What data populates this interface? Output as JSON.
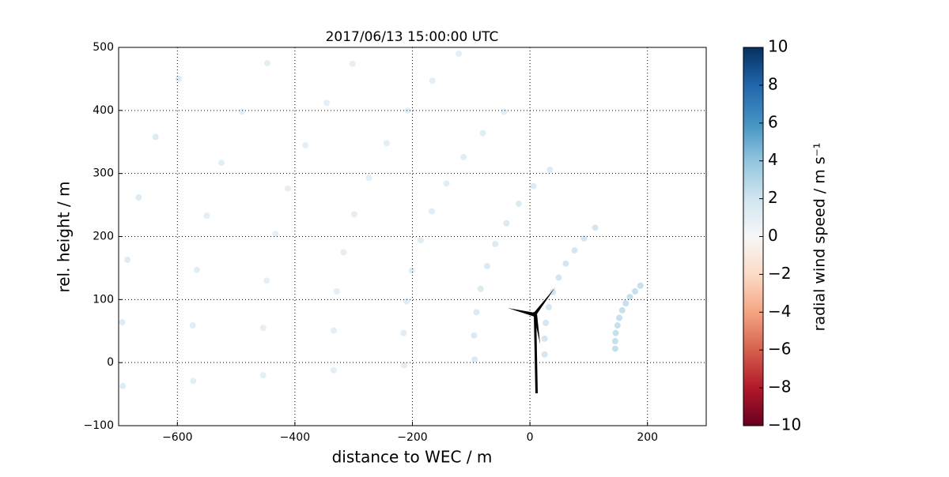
{
  "chart_data": {
    "type": "scatter",
    "title": "2017/06/13 15:00:00 UTC",
    "x_label": "distance to WEC / m",
    "y_label": "rel. height / m",
    "colorbar_label": "radial wind speed / m s⁻¹",
    "x": [
      145,
      25,
      -94,
      -214,
      -334,
      -454,
      -573,
      -693,
      145,
      25,
      -95,
      -215,
      -334,
      -454,
      -574,
      -694,
      146,
      27,
      -91,
      -210,
      -329,
      -448,
      -567,
      -685,
      149,
      32,
      -84,
      -201,
      -317,
      -433,
      -550,
      -666,
      152,
      39,
      -73,
      -186,
      -299,
      -412,
      -525,
      -637,
      157,
      49,
      -59,
      -167,
      -274,
      -382,
      -490,
      -598,
      163,
      61,
      -40,
      -142,
      -244,
      -346,
      -447,
      170,
      76,
      -19,
      -113,
      -208,
      -302,
      179,
      92,
      6,
      -80,
      -166,
      188,
      111,
      34,
      -44,
      -121
    ],
    "y": [
      22,
      13,
      5,
      -4,
      -12,
      -20,
      -29,
      -37,
      34,
      38,
      43,
      47,
      51,
      55,
      59,
      64,
      47,
      63,
      80,
      97,
      113,
      130,
      147,
      163,
      59,
      88,
      117,
      146,
      175,
      204,
      233,
      262,
      71,
      112,
      153,
      194,
      235,
      276,
      317,
      358,
      83,
      135,
      188,
      240,
      293,
      345,
      398,
      450,
      94,
      157,
      221,
      284,
      348,
      412,
      475,
      104,
      178,
      252,
      326,
      400,
      474,
      113,
      197,
      280,
      364,
      447,
      122,
      214,
      306,
      398,
      490
    ],
    "values": [
      2.8,
      2.3,
      1.9,
      1.6,
      1.4,
      1.3,
      1.5,
      1.8,
      2.8,
      2.3,
      1.9,
      1.6,
      1.4,
      1.3,
      1.5,
      1.8,
      2.8,
      2.3,
      1.9,
      1.6,
      1.4,
      1.3,
      1.5,
      1.8,
      2.8,
      2.3,
      1.9,
      1.6,
      1.4,
      1.3,
      1.5,
      1.8,
      2.8,
      2.3,
      1.9,
      1.6,
      1.4,
      1.3,
      1.5,
      1.8,
      2.8,
      2.3,
      1.9,
      1.6,
      1.4,
      1.3,
      1.5,
      1.8,
      2.8,
      2.3,
      1.9,
      1.6,
      1.4,
      1.3,
      1.5,
      2.8,
      2.3,
      1.9,
      1.6,
      1.4,
      1.3,
      2.8,
      2.3,
      1.9,
      1.6,
      1.4,
      2.8,
      2.3,
      1.9,
      1.6,
      1.4
    ],
    "xlim": [
      -700,
      300
    ],
    "ylim": [
      -100,
      500
    ],
    "clim": [
      -10,
      10
    ],
    "xticks": [
      {
        "value": -600,
        "label": "−600"
      },
      {
        "value": -400,
        "label": "−400"
      },
      {
        "value": -200,
        "label": "−200"
      },
      0,
      200
    ],
    "yticks": [
      {
        "value": -100,
        "label": "−100"
      },
      0,
      100,
      200,
      300,
      400,
      500
    ],
    "cticks": [
      {
        "value": -10,
        "label": "−10"
      },
      {
        "value": -8,
        "label": "−8"
      },
      {
        "value": -6,
        "label": "−6"
      },
      {
        "value": -4,
        "label": "−4"
      },
      {
        "value": -2,
        "label": "−2"
      },
      0,
      2,
      4,
      6,
      8,
      10
    ],
    "grid": true
  }
}
